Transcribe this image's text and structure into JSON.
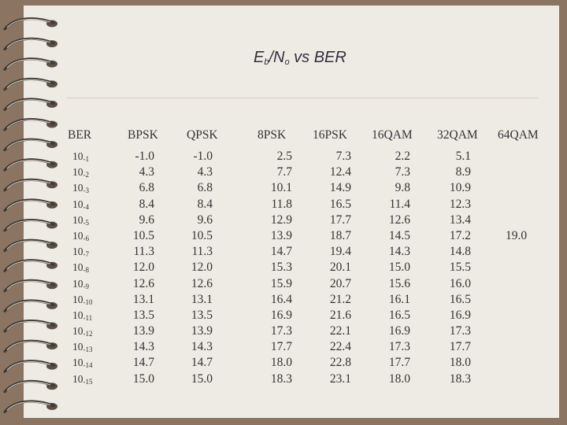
{
  "title": {
    "main": "E",
    "b_sub": "b",
    "slash": "/N",
    "o_sub": "o",
    "rest": " vs BER"
  },
  "table": {
    "ber_header": "BER",
    "ber_base": "10",
    "ber_exponents": [
      "-1",
      "-2",
      "-3",
      "-4",
      "-5",
      "-6",
      "-7",
      "-8",
      "-9",
      "-10",
      "-11",
      "-12",
      "-13",
      "-14",
      "-15"
    ],
    "columns": [
      {
        "header": "BPSK",
        "values": [
          "-1.0",
          "4.3",
          "6.8",
          "8.4",
          "9.6",
          "10.5",
          "11.3",
          "12.0",
          "12.6",
          "13.1",
          "13.5",
          "13.9",
          "14.3",
          "14.7",
          "15.0"
        ]
      },
      {
        "header": "QPSK",
        "values": [
          "-1.0",
          "4.3",
          "6.8",
          "8.4",
          "9.6",
          "10.5",
          "11.3",
          "12.0",
          "12.6",
          "13.1",
          "13.5",
          "13.9",
          "14.3",
          "14.7",
          "15.0"
        ]
      },
      {
        "header": "8PSK",
        "values": [
          "2.5",
          "7.7",
          "10.1",
          "11.8",
          "12.9",
          "13.9",
          "14.7",
          "15.3",
          "15.9",
          "16.4",
          "16.9",
          "17.3",
          "17.7",
          "18.0",
          "18.3"
        ]
      },
      {
        "header": "16PSK",
        "values": [
          "7.3",
          "12.4",
          "14.9",
          "16.5",
          "17.7",
          "18.7",
          "19.4",
          "20.1",
          "20.7",
          "21.2",
          "21.6",
          "22.1",
          "22.4",
          "22.8",
          "23.1"
        ]
      },
      {
        "header": "16QAM",
        "values": [
          "2.2",
          "7.3",
          "9.8",
          "11.4",
          "12.6",
          "14.5",
          "14.3",
          "15.0",
          "15.6",
          "16.1",
          "16.5",
          "16.9",
          "17.3",
          "17.7",
          "18.0"
        ]
      },
      {
        "header": "32QAM",
        "values": [
          "5.1",
          "8.9",
          "10.9",
          "12.3",
          "13.4",
          "17.2",
          "14.8",
          "15.5",
          "16.0",
          "16.5",
          "16.9",
          "17.3",
          "17.7",
          "18.0",
          "18.3"
        ]
      },
      {
        "header": "64QAM",
        "values": [
          "",
          "",
          "",
          "",
          "",
          "19.0",
          "",
          "",
          "",
          "",
          "",
          "",
          "",
          "",
          ""
        ]
      }
    ]
  }
}
